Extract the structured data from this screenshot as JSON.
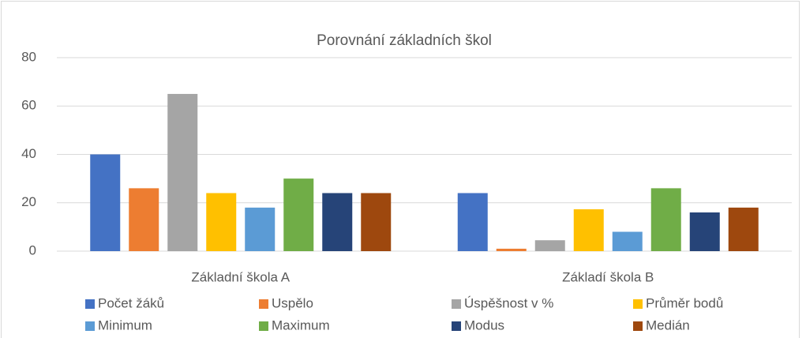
{
  "chart_data": {
    "type": "bar",
    "title": "Porovnání základních škol",
    "categories": [
      "Základní škola A",
      "Základí škola B"
    ],
    "series": [
      {
        "name": "Počet žáků",
        "color": "#4472c4",
        "values": [
          40,
          24
        ]
      },
      {
        "name": "Uspělo",
        "color": "#ed7d31",
        "values": [
          26,
          1
        ]
      },
      {
        "name": "Úspěšnost v %",
        "color": "#a5a5a5",
        "values": [
          65,
          4.5
        ]
      },
      {
        "name": "Průměr bodů",
        "color": "#ffc000",
        "values": [
          24,
          17.3
        ]
      },
      {
        "name": "Minimum",
        "color": "#5b9bd5",
        "values": [
          18,
          8
        ]
      },
      {
        "name": "Maximum",
        "color": "#70ad47",
        "values": [
          30,
          26
        ]
      },
      {
        "name": "Modus",
        "color": "#264478",
        "values": [
          24,
          16
        ]
      },
      {
        "name": "Medián",
        "color": "#9e480e",
        "values": [
          24,
          18
        ]
      }
    ],
    "ylim": [
      0,
      80
    ],
    "yticks": [
      0,
      20,
      40,
      60,
      80
    ],
    "grid": true,
    "legend": "bottom"
  }
}
